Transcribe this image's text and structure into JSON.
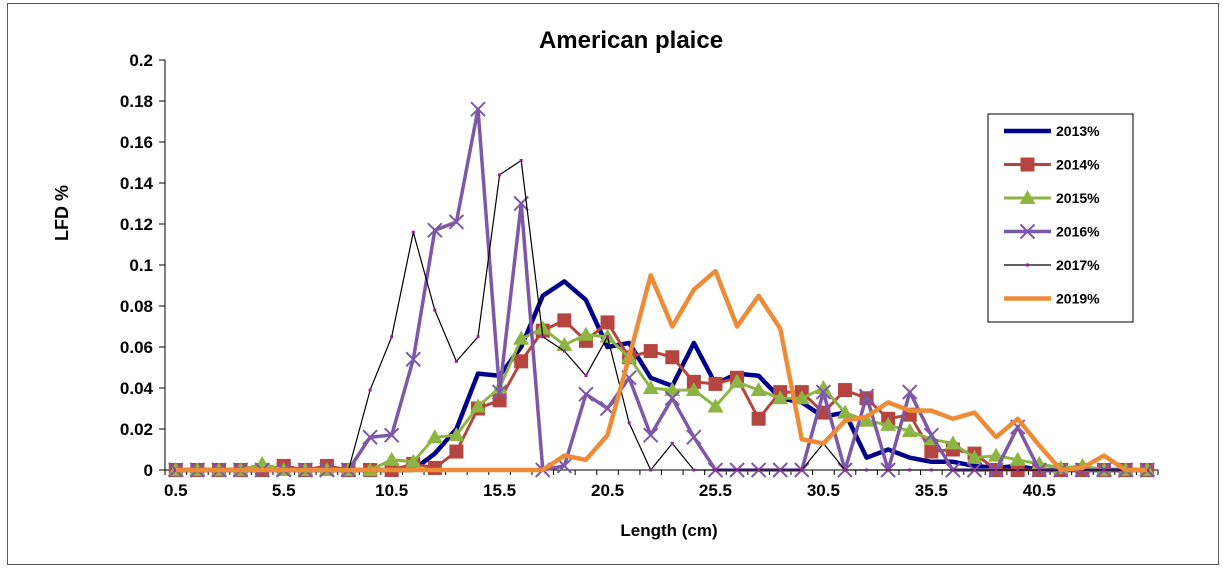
{
  "chart_data": {
    "type": "line",
    "title": "American plaice",
    "xlabel": "Length (cm)",
    "ylabel": "LFD %",
    "ylim": [
      0,
      0.2
    ],
    "yticks": [
      "0",
      "0.02",
      "0.04",
      "0.06",
      "0.08",
      "0.1",
      "0.12",
      "0.14",
      "0.16",
      "0.18",
      "0.2"
    ],
    "xtick_labels": [
      "0.5",
      "5.5",
      "10.5",
      "15.5",
      "20.5",
      "25.5",
      "30.5",
      "35.5",
      "40.5"
    ],
    "x": [
      0.5,
      1.5,
      2.5,
      3.5,
      4.5,
      5.5,
      6.5,
      7.5,
      8.5,
      9.5,
      10.5,
      11.5,
      12.5,
      13.5,
      14.5,
      15.5,
      16.5,
      17.5,
      18.5,
      19.5,
      20.5,
      21.5,
      22.5,
      23.5,
      24.5,
      25.5,
      26.5,
      27.5,
      28.5,
      29.5,
      30.5,
      31.5,
      32.5,
      33.5,
      34.5,
      35.5,
      36.5,
      37.5,
      38.5,
      39.5,
      40.5,
      41.5,
      42.5,
      43.5,
      44.5,
      45.5
    ],
    "legend_position": "right",
    "grid": false,
    "series": [
      {
        "name": "2013%",
        "color": "#00008B",
        "width": 4.5,
        "marker": "none",
        "values": [
          0,
          0,
          0,
          0,
          0,
          0,
          0,
          0,
          0,
          0,
          0,
          0,
          0.008,
          0.02,
          0.047,
          0.046,
          0.06,
          0.085,
          0.092,
          0.083,
          0.06,
          0.062,
          0.045,
          0.041,
          0.062,
          0.042,
          0.047,
          0.046,
          0.035,
          0.033,
          0.026,
          0.028,
          0.006,
          0.01,
          0.006,
          0.004,
          0.004,
          0.002,
          0.001,
          0.002,
          0,
          0,
          0,
          0,
          0,
          0
        ]
      },
      {
        "name": "2014%",
        "color": "#B5463F",
        "width": 3,
        "marker": "square",
        "values": [
          0,
          0,
          0,
          0,
          0,
          0.002,
          0,
          0.002,
          0,
          0,
          0,
          0.003,
          0.001,
          0.009,
          0.03,
          0.034,
          0.053,
          0.068,
          0.073,
          0.063,
          0.072,
          0.055,
          0.058,
          0.055,
          0.043,
          0.042,
          0.045,
          0.025,
          0.038,
          0.038,
          0.028,
          0.039,
          0.035,
          0.025,
          0.027,
          0.009,
          0.01,
          0.008,
          0,
          0,
          0,
          0,
          0,
          0,
          0,
          0
        ]
      },
      {
        "name": "2015%",
        "color": "#8DB543",
        "width": 3,
        "marker": "triangle",
        "values": [
          0,
          0,
          0,
          0,
          0.003,
          0,
          0,
          0,
          0,
          0,
          0.005,
          0.004,
          0.016,
          0.017,
          0.031,
          0.04,
          0.064,
          0.069,
          0.061,
          0.066,
          0.065,
          0.055,
          0.04,
          0.039,
          0.039,
          0.031,
          0.043,
          0.039,
          0.035,
          0.035,
          0.04,
          0.028,
          0.024,
          0.022,
          0.019,
          0.015,
          0.013,
          0.006,
          0.007,
          0.005,
          0.003,
          0.001,
          0.002,
          0,
          0,
          0
        ]
      },
      {
        "name": "2016%",
        "color": "#7E58A8",
        "width": 3.5,
        "marker": "x",
        "values": [
          0,
          0,
          0,
          0,
          0,
          0,
          0,
          0,
          0,
          0.016,
          0.017,
          0.054,
          0.117,
          0.121,
          0.176,
          0.038,
          0.13,
          0,
          0.002,
          0.037,
          0.03,
          0.045,
          0.017,
          0.035,
          0.016,
          0,
          0,
          0,
          0,
          0,
          0.038,
          0,
          0.036,
          0,
          0.038,
          0.017,
          0,
          0,
          0,
          0.021,
          0,
          0,
          0,
          0,
          0,
          0
        ]
      },
      {
        "name": "2017%",
        "color": "#000000",
        "width": 1.2,
        "marker": "dot",
        "values": [
          0,
          0,
          0,
          0,
          0,
          0,
          0,
          0,
          0,
          0.039,
          0.065,
          0.116,
          0.078,
          0.053,
          0.065,
          0.144,
          0.151,
          0.065,
          0.058,
          0.046,
          0.065,
          0.023,
          0,
          0.013,
          0,
          0,
          0,
          0,
          0,
          0,
          0.013,
          0,
          0,
          0,
          0,
          0,
          0,
          0,
          0,
          0,
          0,
          0,
          0,
          0,
          0,
          0
        ]
      },
      {
        "name": "2019%",
        "color": "#ED8B37",
        "width": 4.5,
        "marker": "none",
        "values": [
          0,
          0,
          0,
          0,
          0,
          0,
          0,
          0,
          0,
          0,
          0,
          0,
          0,
          0,
          0,
          0,
          0,
          0,
          0.007,
          0.005,
          0.017,
          0.055,
          0.095,
          0.07,
          0.088,
          0.097,
          0.07,
          0.085,
          0.069,
          0.015,
          0.013,
          0.024,
          0.026,
          0.033,
          0.029,
          0.029,
          0.025,
          0.028,
          0.016,
          0.025,
          0.012,
          0,
          0.001,
          0.007,
          0,
          0
        ]
      }
    ]
  }
}
